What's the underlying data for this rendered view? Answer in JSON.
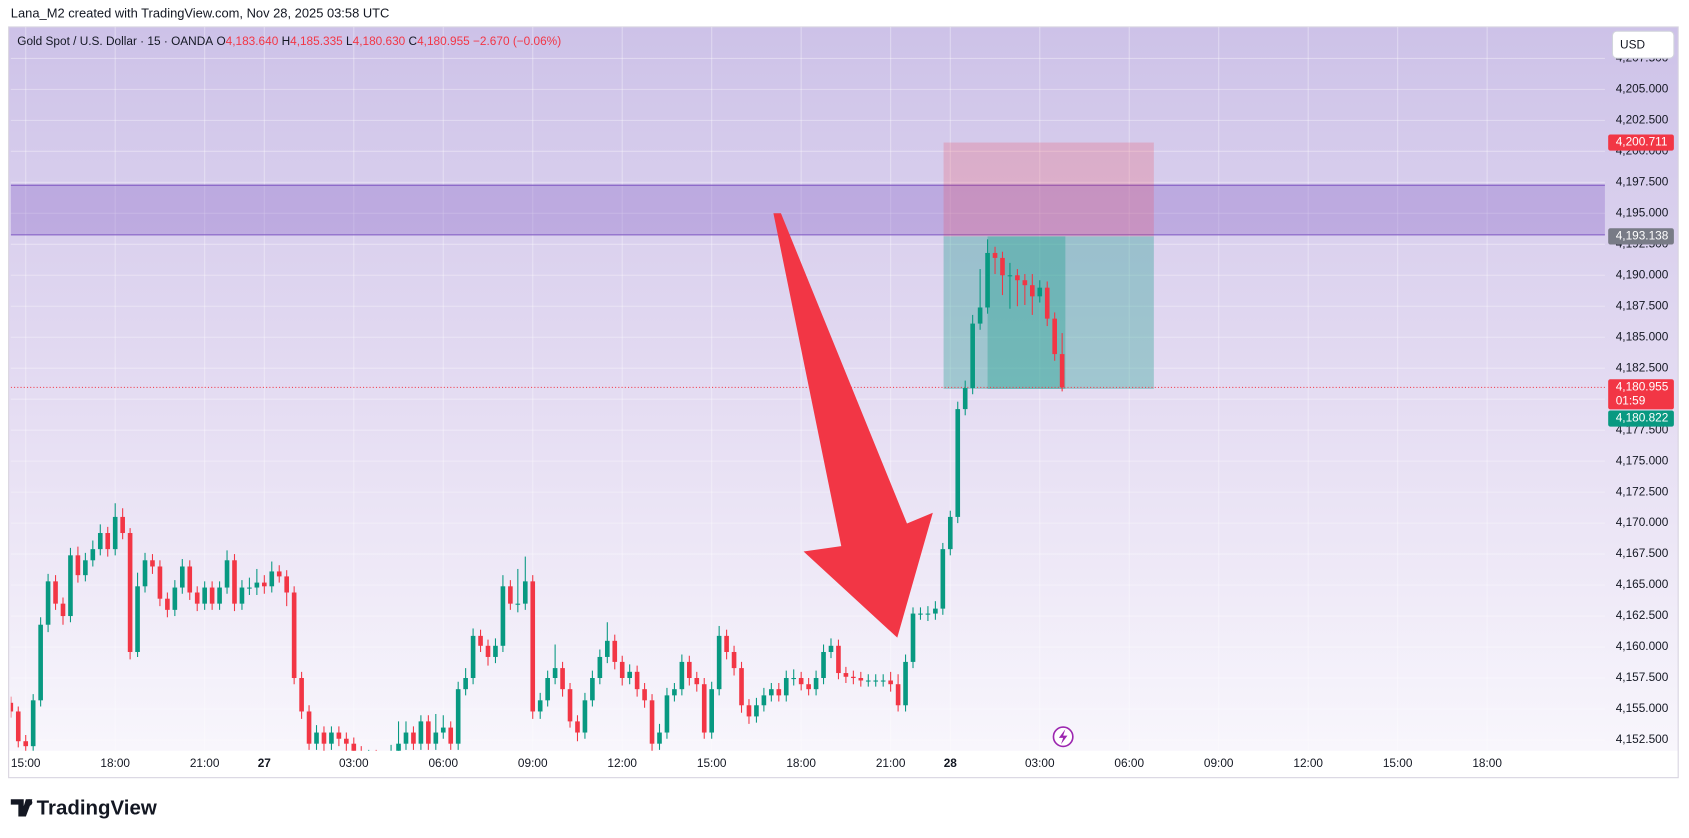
{
  "chart_data": {
    "type": "candlestick",
    "credit": "Lana_M2 created with TradingView.com, Nov 28, 2025 03:58 UTC",
    "header": {
      "symbol": "Gold Spot / U.S. Dollar · 15 · OANDA",
      "o_label": "O",
      "o": "4,183.640",
      "h_label": "H",
      "h": "4,185.335",
      "l_label": "L",
      "l": "4,180.630",
      "c_label": "C",
      "c": "4,180.955",
      "change": "−2.670 (−0.06%)"
    },
    "currency": "USD",
    "logo": "TradingView",
    "up_color": "#089981",
    "down_color": "#f23645",
    "xlim": [
      -2,
      211.8
    ],
    "xticks": [
      {
        "value": 0,
        "label": "15:00"
      },
      {
        "value": 12,
        "label": "18:00"
      },
      {
        "value": 24,
        "label": "21:00"
      },
      {
        "value": 32,
        "label": "27"
      },
      {
        "value": 44,
        "label": "03:00"
      },
      {
        "value": 56,
        "label": "06:00"
      },
      {
        "value": 68,
        "label": "09:00"
      },
      {
        "value": 80,
        "label": "12:00"
      },
      {
        "value": 92,
        "label": "15:00"
      },
      {
        "value": 104,
        "label": "18:00"
      },
      {
        "value": 116,
        "label": "21:00"
      },
      {
        "value": 124,
        "label": "28"
      },
      {
        "value": 136,
        "label": "03:00"
      },
      {
        "value": 148,
        "label": "06:00"
      },
      {
        "value": 160,
        "label": "09:00"
      },
      {
        "value": 172,
        "label": "12:00"
      },
      {
        "value": 184,
        "label": "15:00"
      },
      {
        "value": 196,
        "label": "18:00"
      }
    ],
    "ylim": [
      4151.63,
      4210.04
    ],
    "yticks": [
      {
        "value": 4152.5,
        "label": "4,152.500"
      },
      {
        "value": 4155,
        "label": "4,155.000"
      },
      {
        "value": 4157.5,
        "label": "4,157.500"
      },
      {
        "value": 4160,
        "label": "4,160.000"
      },
      {
        "value": 4162.5,
        "label": "4,162.500"
      },
      {
        "value": 4165,
        "label": "4,165.000"
      },
      {
        "value": 4167.5,
        "label": "4,167.500"
      },
      {
        "value": 4170,
        "label": "4,170.000"
      },
      {
        "value": 4172.5,
        "label": "4,172.500"
      },
      {
        "value": 4175,
        "label": "4,175.000"
      },
      {
        "value": 4177.5,
        "label": "4,177.500"
      },
      {
        "value": 4180,
        "label": "4,180.000"
      },
      {
        "value": 4182.5,
        "label": "4,182.500"
      },
      {
        "value": 4185,
        "label": "4,185.000"
      },
      {
        "value": 4187.5,
        "label": "4,187.500"
      },
      {
        "value": 4190,
        "label": "4,190.000"
      },
      {
        "value": 4192.5,
        "label": "4,192.500"
      },
      {
        "value": 4195,
        "label": "4,195.000"
      },
      {
        "value": 4197.5,
        "label": "4,197.500"
      },
      {
        "value": 4200,
        "label": "4,200.000"
      },
      {
        "value": 4202.5,
        "label": "4,202.500"
      },
      {
        "value": 4205,
        "label": "4,205.000"
      },
      {
        "value": 4207.5,
        "label": "4,207.500"
      }
    ],
    "grid": true,
    "zone": {
      "low": 4193.26,
      "high": 4197.27,
      "color": "#7e57c2"
    },
    "position": {
      "start": 123.1,
      "end": 151.3,
      "entry": 4193.138,
      "stop": 4200.711,
      "target": 4180.822
    },
    "price_labels": [
      {
        "value": 4200.711,
        "label": "4,200.711",
        "color": "#f23645"
      },
      {
        "value": 4193.138,
        "label": "4,193.138",
        "color": "#787b86"
      },
      {
        "value": 4180.955,
        "label": "4,180.955",
        "color": "#f23645",
        "sublabel": "01:59"
      },
      {
        "value": 4180.822,
        "label": "4,180.822",
        "color": "#089981"
      }
    ],
    "x": [
      -2,
      -1,
      0,
      1,
      2,
      3,
      4,
      5,
      6,
      7,
      8,
      9,
      10,
      11,
      12,
      13,
      14,
      15,
      16,
      17,
      18,
      19,
      20,
      21,
      22,
      23,
      24,
      25,
      26,
      27,
      28,
      29,
      30,
      31,
      32,
      33,
      34,
      35,
      36,
      37,
      38,
      39,
      40,
      41,
      42,
      43,
      44,
      45,
      46,
      47,
      48,
      49,
      50,
      51,
      52,
      53,
      54,
      55,
      56,
      57,
      58,
      59,
      60,
      61,
      62,
      63,
      64,
      65,
      66,
      67,
      68,
      69,
      70,
      71,
      72,
      73,
      74,
      75,
      76,
      77,
      78,
      79,
      80,
      81,
      82,
      83,
      84,
      85,
      86,
      87,
      88,
      89,
      90,
      91,
      92,
      93,
      94,
      95,
      96,
      97,
      98,
      99,
      100,
      101,
      102,
      103,
      104,
      105,
      106,
      107,
      108,
      109,
      110,
      111,
      112,
      113,
      114,
      115,
      116,
      117,
      118,
      119,
      120,
      121,
      122,
      123,
      124,
      125,
      126,
      127,
      128,
      129,
      130,
      131,
      132,
      133,
      134,
      135,
      136,
      137,
      138,
      139
    ],
    "open": [
      4155.5,
      4154.8,
      4152.4,
      4152.0,
      4155.7,
      4161.8,
      4165.3,
      4163.5,
      4162.5,
      4167.4,
      4165.8,
      4167.0,
      4167.9,
      4169.2,
      4167.9,
      4170.5,
      4169.2,
      4159.6,
      4164.9,
      4167.0,
      4166.5,
      4163.9,
      4163.0,
      4164.8,
      4166.5,
      4164.4,
      4163.5,
      4164.8,
      4163.5,
      4164.8,
      4167.0,
      4163.5,
      4164.8,
      4164.8,
      4165.2,
      4164.9,
      4166.1,
      4165.7,
      4164.4,
      4157.5,
      4154.8,
      4152.2,
      4153.1,
      4152.2,
      4153.1,
      4152.6,
      4152.2,
      4151.5,
      4150.8,
      4151.2,
      4150.5,
      4151.0,
      4151.6,
      4152.2,
      4153.1,
      4152.2,
      4154.0,
      4152.2,
      4153.1,
      4153.5,
      4152.2,
      4156.6,
      4157.5,
      4160.9,
      4160.1,
      4159.2,
      4160.1,
      4164.9,
      4163.5,
      4163.5,
      4165.3,
      4154.8,
      4155.7,
      4157.5,
      4158.3,
      4156.6,
      4154.0,
      4153.1,
      4155.7,
      4157.5,
      4159.2,
      4160.5,
      4158.8,
      4157.5,
      4158.0,
      4156.6,
      4155.7,
      4152.2,
      4153.1,
      4156.1,
      4156.6,
      4158.8,
      4157.5,
      4157.0,
      4153.1,
      4156.6,
      4160.9,
      4159.6,
      4158.3,
      4155.3,
      4154.4,
      4155.3,
      4156.1,
      4156.6,
      4156.1,
      4157.5,
      4157.5,
      4157.0,
      4156.6,
      4157.5,
      4159.6,
      4160.1,
      4157.9,
      4157.6,
      4157.5,
      4157.3,
      4157.3,
      4157.3,
      4157.3,
      4157.0,
      4155.3,
      4158.8,
      4162.7,
      4162.7,
      4162.7,
      4163.1,
      4167.9,
      4170.5,
      4179.2,
      4180.9,
      4186.1,
      4187.4,
      4191.8,
      4191.4,
      4190.0,
      4190.0,
      4189.6,
      4189.2,
      4188.3,
      4189.0,
      4186.5,
      4183.64
    ],
    "high": [
      4156.0,
      4155.2,
      4152.9,
      4156.2,
      4162.4,
      4165.9,
      4165.8,
      4164.0,
      4168.0,
      4168.1,
      4167.6,
      4168.6,
      4169.9,
      4169.7,
      4171.6,
      4171.2,
      4169.6,
      4166.0,
      4167.6,
      4167.5,
      4167.0,
      4164.4,
      4165.4,
      4167.1,
      4167.0,
      4164.9,
      4165.3,
      4165.3,
      4165.3,
      4167.8,
      4167.5,
      4165.4,
      4165.6,
      4166.3,
      4165.8,
      4166.9,
      4166.6,
      4166.2,
      4164.9,
      4158.0,
      4155.3,
      4153.7,
      4153.6,
      4153.6,
      4153.6,
      4153.1,
      4152.7,
      4152.0,
      4151.7,
      4151.7,
      4151.5,
      4152.1,
      4154.0,
      4154.0,
      4153.6,
      4154.5,
      4154.5,
      4154.6,
      4154.5,
      4154.0,
      4157.2,
      4158.3,
      4161.5,
      4161.4,
      4160.6,
      4160.7,
      4165.8,
      4165.4,
      4166.3,
      4167.3,
      4165.8,
      4156.3,
      4158.1,
      4160.2,
      4158.8,
      4157.1,
      4154.5,
      4156.3,
      4158.1,
      4159.8,
      4162.0,
      4161.0,
      4159.3,
      4158.6,
      4158.5,
      4157.1,
      4156.2,
      4153.8,
      4156.7,
      4157.1,
      4159.4,
      4159.3,
      4158.0,
      4157.5,
      4157.2,
      4161.7,
      4161.4,
      4160.1,
      4158.8,
      4155.8,
      4155.9,
      4156.7,
      4157.1,
      4157.1,
      4158.1,
      4158.2,
      4158.0,
      4157.5,
      4158.1,
      4160.2,
      4160.7,
      4160.6,
      4158.4,
      4158.1,
      4158.0,
      4157.8,
      4157.8,
      4157.8,
      4158.0,
      4157.8,
      4159.4,
      4163.2,
      4163.2,
      4163.3,
      4163.7,
      4168.4,
      4171.0,
      4179.8,
      4181.5,
      4186.8,
      4190.5,
      4192.9,
      4192.3,
      4191.9,
      4191.0,
      4190.5,
      4190.1,
      4190.1,
      4189.6,
      4189.5,
      4187.0,
      4185.335
    ],
    "low": [
      4154.3,
      4151.9,
      4151.5,
      4151.6,
      4155.2,
      4161.2,
      4163.0,
      4161.8,
      4162.0,
      4165.2,
      4165.3,
      4166.5,
      4167.4,
      4167.3,
      4167.4,
      4168.7,
      4159.0,
      4159.2,
      4164.4,
      4165.9,
      4163.3,
      4162.4,
      4162.5,
      4164.3,
      4163.8,
      4162.9,
      4163.0,
      4163.0,
      4163.0,
      4164.3,
      4162.9,
      4163.0,
      4164.2,
      4164.2,
      4164.3,
      4164.4,
      4165.2,
      4163.3,
      4157.0,
      4154.2,
      4151.7,
      4151.7,
      4151.6,
      4151.7,
      4152.0,
      4151.6,
      4151.0,
      4150.3,
      4150.3,
      4150.0,
      4150.0,
      4150.5,
      4151.1,
      4151.7,
      4151.7,
      4151.7,
      4151.7,
      4151.7,
      4152.6,
      4151.7,
      4151.7,
      4156.1,
      4157.0,
      4159.6,
      4158.5,
      4158.7,
      4159.6,
      4163.0,
      4162.8,
      4163.0,
      4154.2,
      4154.2,
      4155.2,
      4157.0,
      4156.0,
      4153.5,
      4152.4,
      4152.6,
      4155.2,
      4157.0,
      4158.7,
      4158.2,
      4156.9,
      4157.0,
      4156.0,
      4155.1,
      4151.6,
      4151.7,
      4152.6,
      4155.6,
      4156.1,
      4156.9,
      4156.4,
      4152.6,
      4152.6,
      4156.1,
      4159.0,
      4157.7,
      4154.7,
      4153.8,
      4153.9,
      4154.8,
      4155.6,
      4155.6,
      4155.6,
      4156.9,
      4156.5,
      4156.1,
      4156.1,
      4157.0,
      4159.1,
      4157.4,
      4157.1,
      4157.0,
      4156.8,
      4156.8,
      4156.8,
      4156.8,
      4156.4,
      4154.8,
      4154.8,
      4158.3,
      4162.2,
      4162.1,
      4162.2,
      4162.6,
      4167.4,
      4170.0,
      4178.7,
      4180.4,
      4185.6,
      4186.9,
      4190.1,
      4188.4,
      4187.3,
      4187.5,
      4187.6,
      4186.8,
      4187.8,
      4185.9,
      4183.1,
      4180.63
    ],
    "close": [
      4154.8,
      4152.4,
      4152.0,
      4155.7,
      4161.8,
      4165.3,
      4163.5,
      4162.5,
      4167.4,
      4165.8,
      4167.0,
      4167.9,
      4169.2,
      4167.9,
      4170.5,
      4169.2,
      4159.6,
      4164.9,
      4167.0,
      4166.5,
      4163.9,
      4163.0,
      4164.8,
      4166.5,
      4164.4,
      4163.5,
      4164.8,
      4163.5,
      4164.8,
      4167.0,
      4163.5,
      4164.8,
      4164.8,
      4165.2,
      4164.9,
      4166.1,
      4165.7,
      4164.4,
      4157.5,
      4154.8,
      4152.2,
      4153.1,
      4152.2,
      4153.1,
      4152.6,
      4152.2,
      4151.5,
      4150.8,
      4151.2,
      4150.5,
      4151.0,
      4151.6,
      4152.2,
      4153.1,
      4152.2,
      4154.0,
      4152.2,
      4153.1,
      4153.5,
      4152.2,
      4156.6,
      4157.5,
      4160.9,
      4160.1,
      4159.2,
      4160.1,
      4164.9,
      4163.5,
      4163.5,
      4165.3,
      4154.8,
      4155.7,
      4157.5,
      4158.3,
      4156.6,
      4154.0,
      4153.1,
      4155.7,
      4157.5,
      4159.2,
      4160.5,
      4158.8,
      4157.5,
      4158.0,
      4156.6,
      4155.7,
      4152.2,
      4153.1,
      4156.1,
      4156.6,
      4158.8,
      4157.5,
      4157.0,
      4153.1,
      4156.6,
      4160.9,
      4159.6,
      4158.3,
      4155.3,
      4154.4,
      4155.3,
      4156.1,
      4156.6,
      4156.1,
      4157.5,
      4157.5,
      4157.0,
      4156.6,
      4157.5,
      4159.6,
      4160.1,
      4157.9,
      4157.6,
      4157.5,
      4157.3,
      4157.3,
      4157.3,
      4157.3,
      4157.0,
      4155.3,
      4158.8,
      4162.7,
      4162.7,
      4162.7,
      4163.1,
      4167.9,
      4170.5,
      4179.2,
      4180.9,
      4186.1,
      4187.4,
      4191.8,
      4191.4,
      4190.0,
      4190.0,
      4189.6,
      4189.2,
      4188.3,
      4189.0,
      4186.5,
      4183.64,
      4180.955
    ]
  }
}
